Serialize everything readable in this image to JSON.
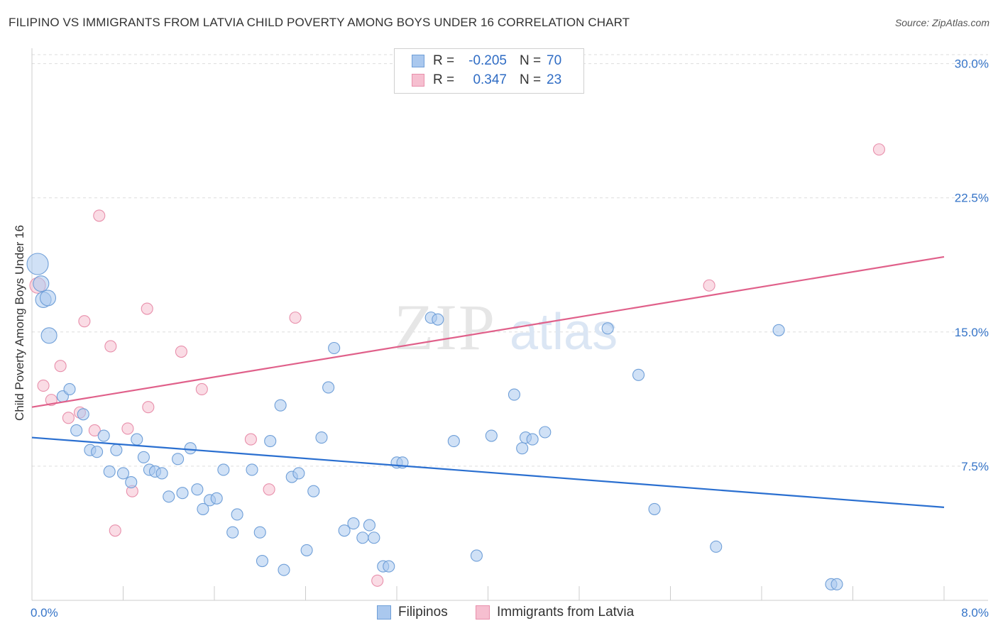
{
  "title": "FILIPINO VS IMMIGRANTS FROM LATVIA CHILD POVERTY AMONG BOYS UNDER 16 CORRELATION CHART",
  "source": "Source: ZipAtlas.com",
  "watermark": {
    "zip": "ZIP",
    "atlas": "atlas"
  },
  "colors": {
    "blue_fill": "#aac8ee",
    "blue_stroke": "#6f9fd8",
    "blue_line": "#2a6fd0",
    "pink_fill": "#f6bfd0",
    "pink_stroke": "#e88fab",
    "pink_line": "#e0608a",
    "axis_text": "#3574c8",
    "grid": "#dddddd"
  },
  "legend": {
    "rows": [
      {
        "r_label": "R =",
        "r_value": "-0.205",
        "n_label": "N =",
        "n_value": "70"
      },
      {
        "r_label": "R =",
        "r_value": "0.347",
        "n_label": "N =",
        "n_value": "23"
      }
    ]
  },
  "bottom_legend": [
    "Filipinos",
    "Immigrants from Latvia"
  ],
  "chart_data": {
    "type": "scatter",
    "title": "FILIPINO VS IMMIGRANTS FROM LATVIA CHILD POVERTY AMONG BOYS UNDER 16 CORRELATION CHART",
    "xlabel": "",
    "ylabel": "Child Poverty Among Boys Under 16",
    "xlim": [
      0,
      8
    ],
    "ylim": [
      0,
      30.5
    ],
    "x_tick_labels": [
      "0.0%",
      "8.0%"
    ],
    "y_ticks": [
      7.5,
      15.0,
      22.5,
      30.0
    ],
    "y_tick_labels": [
      "7.5%",
      "15.0%",
      "22.5%",
      "30.0%"
    ],
    "grid": true,
    "legend_position": "top-center",
    "series": [
      {
        "name": "Filipinos",
        "color": "#aac8ee",
        "trend": {
          "x": [
            0,
            8
          ],
          "y": [
            9.1,
            5.2
          ]
        },
        "points": [
          {
            "x": 0.05,
            "y": 18.8,
            "s": 3
          },
          {
            "x": 0.08,
            "y": 17.7,
            "s": 2
          },
          {
            "x": 0.1,
            "y": 16.8,
            "s": 2
          },
          {
            "x": 0.14,
            "y": 16.9,
            "s": 2
          },
          {
            "x": 0.15,
            "y": 14.8,
            "s": 2
          },
          {
            "x": 0.27,
            "y": 11.4,
            "s": 1
          },
          {
            "x": 0.33,
            "y": 11.8,
            "s": 1
          },
          {
            "x": 0.45,
            "y": 10.4,
            "s": 1
          },
          {
            "x": 0.39,
            "y": 9.5,
            "s": 1
          },
          {
            "x": 0.63,
            "y": 9.2,
            "s": 1
          },
          {
            "x": 0.51,
            "y": 8.4,
            "s": 1
          },
          {
            "x": 0.57,
            "y": 8.3,
            "s": 1
          },
          {
            "x": 0.74,
            "y": 8.4,
            "s": 1
          },
          {
            "x": 0.92,
            "y": 9.0,
            "s": 1
          },
          {
            "x": 0.98,
            "y": 8.0,
            "s": 1
          },
          {
            "x": 0.68,
            "y": 7.2,
            "s": 1
          },
          {
            "x": 0.8,
            "y": 7.1,
            "s": 1
          },
          {
            "x": 0.87,
            "y": 6.6,
            "s": 1
          },
          {
            "x": 1.03,
            "y": 7.3,
            "s": 1
          },
          {
            "x": 1.08,
            "y": 7.2,
            "s": 1
          },
          {
            "x": 1.14,
            "y": 7.1,
            "s": 1
          },
          {
            "x": 1.28,
            "y": 7.9,
            "s": 1
          },
          {
            "x": 1.39,
            "y": 8.5,
            "s": 1
          },
          {
            "x": 1.2,
            "y": 5.8,
            "s": 1
          },
          {
            "x": 1.32,
            "y": 6.0,
            "s": 1
          },
          {
            "x": 1.45,
            "y": 6.2,
            "s": 1
          },
          {
            "x": 1.5,
            "y": 5.1,
            "s": 1
          },
          {
            "x": 1.56,
            "y": 5.6,
            "s": 1
          },
          {
            "x": 1.62,
            "y": 5.7,
            "s": 1
          },
          {
            "x": 1.68,
            "y": 7.3,
            "s": 1
          },
          {
            "x": 1.8,
            "y": 4.8,
            "s": 1
          },
          {
            "x": 1.76,
            "y": 3.8,
            "s": 1
          },
          {
            "x": 1.93,
            "y": 7.3,
            "s": 1
          },
          {
            "x": 2.0,
            "y": 3.8,
            "s": 1
          },
          {
            "x": 2.02,
            "y": 2.2,
            "s": 1
          },
          {
            "x": 2.09,
            "y": 8.9,
            "s": 1
          },
          {
            "x": 2.18,
            "y": 10.9,
            "s": 1
          },
          {
            "x": 2.21,
            "y": 1.7,
            "s": 1
          },
          {
            "x": 2.28,
            "y": 6.9,
            "s": 1
          },
          {
            "x": 2.34,
            "y": 7.1,
            "s": 1
          },
          {
            "x": 2.41,
            "y": 2.8,
            "s": 1
          },
          {
            "x": 2.47,
            "y": 6.1,
            "s": 1
          },
          {
            "x": 2.54,
            "y": 9.1,
            "s": 1
          },
          {
            "x": 2.6,
            "y": 11.9,
            "s": 1
          },
          {
            "x": 2.65,
            "y": 14.1,
            "s": 1
          },
          {
            "x": 2.74,
            "y": 3.9,
            "s": 1
          },
          {
            "x": 2.82,
            "y": 4.3,
            "s": 1
          },
          {
            "x": 2.9,
            "y": 3.5,
            "s": 1
          },
          {
            "x": 2.96,
            "y": 4.2,
            "s": 1
          },
          {
            "x": 3.0,
            "y": 3.5,
            "s": 1
          },
          {
            "x": 3.08,
            "y": 1.9,
            "s": 1
          },
          {
            "x": 3.13,
            "y": 1.9,
            "s": 1
          },
          {
            "x": 3.2,
            "y": 7.7,
            "s": 1
          },
          {
            "x": 3.25,
            "y": 7.7,
            "s": 1
          },
          {
            "x": 3.5,
            "y": 15.8,
            "s": 1
          },
          {
            "x": 3.56,
            "y": 15.7,
            "s": 1
          },
          {
            "x": 3.7,
            "y": 8.9,
            "s": 1
          },
          {
            "x": 3.9,
            "y": 2.5,
            "s": 1
          },
          {
            "x": 4.03,
            "y": 9.2,
            "s": 1
          },
          {
            "x": 4.23,
            "y": 11.5,
            "s": 1
          },
          {
            "x": 4.3,
            "y": 8.5,
            "s": 1
          },
          {
            "x": 4.33,
            "y": 9.1,
            "s": 1
          },
          {
            "x": 4.39,
            "y": 9.0,
            "s": 1
          },
          {
            "x": 4.5,
            "y": 9.4,
            "s": 1
          },
          {
            "x": 5.05,
            "y": 15.2,
            "s": 1
          },
          {
            "x": 5.32,
            "y": 12.6,
            "s": 1
          },
          {
            "x": 5.46,
            "y": 5.1,
            "s": 1
          },
          {
            "x": 6.0,
            "y": 3.0,
            "s": 1
          },
          {
            "x": 6.55,
            "y": 15.1,
            "s": 1
          },
          {
            "x": 7.01,
            "y": 0.9,
            "s": 1
          },
          {
            "x": 7.06,
            "y": 0.9,
            "s": 1
          }
        ]
      },
      {
        "name": "Immigrants from Latvia",
        "color": "#f6bfd0",
        "trend": {
          "x": [
            0,
            8
          ],
          "y": [
            10.8,
            19.2
          ]
        },
        "points": [
          {
            "x": 0.05,
            "y": 17.6,
            "s": 2
          },
          {
            "x": 0.1,
            "y": 12.0,
            "s": 1
          },
          {
            "x": 0.17,
            "y": 11.2,
            "s": 1
          },
          {
            "x": 0.25,
            "y": 13.1,
            "s": 1
          },
          {
            "x": 0.32,
            "y": 10.2,
            "s": 1
          },
          {
            "x": 0.42,
            "y": 10.5,
            "s": 1
          },
          {
            "x": 0.46,
            "y": 15.6,
            "s": 1
          },
          {
            "x": 0.55,
            "y": 9.5,
            "s": 1
          },
          {
            "x": 0.59,
            "y": 21.5,
            "s": 1
          },
          {
            "x": 0.69,
            "y": 14.2,
            "s": 1
          },
          {
            "x": 0.73,
            "y": 3.9,
            "s": 1
          },
          {
            "x": 0.84,
            "y": 9.6,
            "s": 1
          },
          {
            "x": 0.88,
            "y": 6.1,
            "s": 1
          },
          {
            "x": 1.01,
            "y": 16.3,
            "s": 1
          },
          {
            "x": 1.02,
            "y": 10.8,
            "s": 1
          },
          {
            "x": 1.31,
            "y": 13.9,
            "s": 1
          },
          {
            "x": 1.49,
            "y": 11.8,
            "s": 1
          },
          {
            "x": 1.92,
            "y": 9.0,
            "s": 1
          },
          {
            "x": 2.08,
            "y": 6.2,
            "s": 1
          },
          {
            "x": 2.31,
            "y": 15.8,
            "s": 1
          },
          {
            "x": 3.03,
            "y": 1.1,
            "s": 1
          },
          {
            "x": 5.94,
            "y": 17.6,
            "s": 1
          },
          {
            "x": 7.43,
            "y": 25.2,
            "s": 1
          }
        ]
      }
    ]
  }
}
